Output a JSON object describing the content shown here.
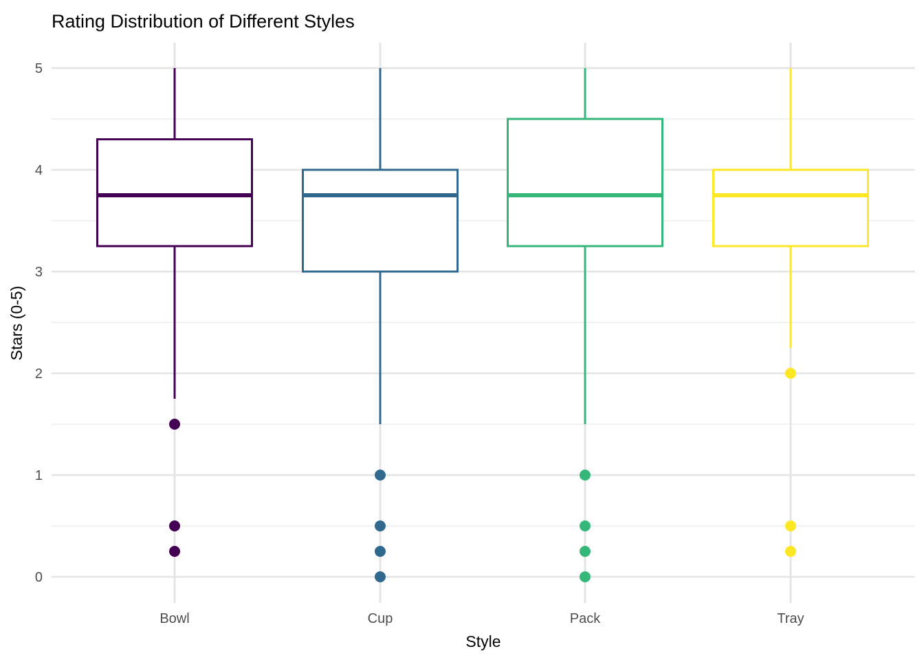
{
  "chart_data": {
    "type": "boxplot",
    "title": "Rating Distribution of Different Styles",
    "xlabel": "Style",
    "ylabel": "Stars (0-5)",
    "ylim": [
      0,
      5
    ],
    "y_ticks": [
      0,
      1,
      2,
      3,
      4,
      5
    ],
    "y_minor_gridlines": [
      0.5,
      1.5,
      2.5,
      3.5,
      4.5
    ],
    "grid": "on",
    "legend": "none",
    "background": "#ffffff",
    "grid_major_color": "#E4E4E4",
    "grid_minor_color": "#F0F0F0",
    "tick_label_color": "#4D4D4D",
    "text_color": "#000000",
    "categories": [
      "Bowl",
      "Cup",
      "Pack",
      "Tray"
    ],
    "series": [
      {
        "name": "Bowl",
        "color": "#440154",
        "whisker_low": 1.75,
        "q1": 3.25,
        "median": 3.75,
        "q3": 4.3,
        "whisker_high": 5.0,
        "outliers": [
          1.5,
          0.5,
          0.25
        ]
      },
      {
        "name": "Cup",
        "color": "#31688E",
        "whisker_low": 1.5,
        "q1": 3.0,
        "median": 3.75,
        "q3": 4.0,
        "whisker_high": 5.0,
        "outliers": [
          1.0,
          0.5,
          0.25,
          0.0
        ]
      },
      {
        "name": "Pack",
        "color": "#35B779",
        "whisker_low": 1.5,
        "q1": 3.25,
        "median": 3.75,
        "q3": 4.5,
        "whisker_high": 5.0,
        "outliers": [
          1.0,
          0.5,
          0.25,
          0.0
        ]
      },
      {
        "name": "Tray",
        "color": "#FDE725",
        "whisker_low": 2.25,
        "q1": 3.25,
        "median": 3.75,
        "q3": 4.0,
        "whisker_high": 5.0,
        "outliers": [
          2.0,
          0.5,
          0.25
        ]
      }
    ]
  }
}
